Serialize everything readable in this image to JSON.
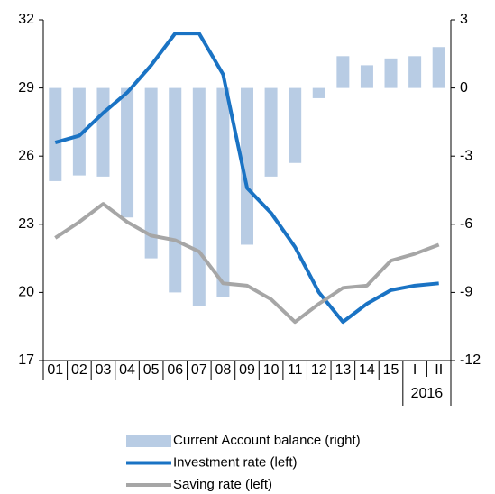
{
  "chart_data": {
    "type": "bar-line",
    "categories": [
      "01",
      "02",
      "03",
      "04",
      "05",
      "06",
      "07",
      "08",
      "09",
      "10",
      "11",
      "12",
      "13",
      "14",
      "15",
      "I",
      "II"
    ],
    "category_group": {
      "label": "2016",
      "from": 15,
      "to": 16
    },
    "series": [
      {
        "name": "Current Account balance (right)",
        "type": "bar",
        "axis": "y2",
        "color": "#b8cce4",
        "values": [
          -4.1,
          -3.85,
          -3.9,
          -5.7,
          -7.5,
          -9.0,
          -9.6,
          -9.2,
          -6.9,
          -3.9,
          -3.3,
          -0.45,
          1.4,
          1.0,
          1.3,
          1.4,
          1.8
        ]
      },
      {
        "name": "Investment rate (left)",
        "type": "line",
        "axis": "y",
        "color": "#1a73c4",
        "values": [
          26.6,
          26.9,
          27.9,
          28.8,
          30.0,
          31.4,
          31.4,
          29.6,
          24.6,
          23.5,
          22.0,
          20.0,
          18.7,
          19.5,
          20.1,
          20.3,
          20.4
        ]
      },
      {
        "name": "Saving rate (left)",
        "type": "line",
        "axis": "y",
        "color": "#a6a6a6",
        "values": [
          22.4,
          23.1,
          23.9,
          23.1,
          22.5,
          22.3,
          21.8,
          20.4,
          20.3,
          19.7,
          18.7,
          19.5,
          20.2,
          20.3,
          21.4,
          21.7,
          22.1
        ]
      }
    ],
    "ylim": [
      17,
      32
    ],
    "yticks": [
      17,
      20,
      23,
      26,
      29,
      32
    ],
    "y2lim": [
      -12,
      3
    ],
    "y2ticks": [
      -12,
      -9,
      -6,
      -3,
      0,
      3
    ]
  }
}
